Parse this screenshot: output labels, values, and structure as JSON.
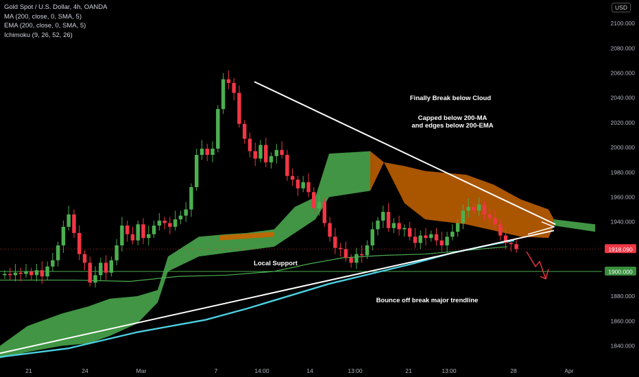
{
  "legend": {
    "title": "Gold Spot / U.S. Dollar, 4h, OANDA",
    "ma": "MA (200, close, 0, SMA, 5)",
    "ema": "EMA (200, close, 0, SMA, 5)",
    "ichimoku": "Ichimoku (9, 26, 52, 26)"
  },
  "currency_button": "USD",
  "colors": {
    "background": "#000000",
    "up": "#26a69a",
    "up_candle": "#4caf50",
    "down_candle": "#f23645",
    "cloud_bull": "#4caf50",
    "cloud_bear": "#c86400",
    "ma_line": "#4caf50",
    "ema_line": "#4dd0e1",
    "trendline": "#ffffff",
    "price_tag": "#f23645",
    "support_tag": "#388e3c",
    "forecast_arrow": "#f23645"
  },
  "chart_data": {
    "type": "candlestick",
    "instrument": "Gold Spot / U.S. Dollar",
    "timeframe": "4h",
    "ylim": [
      1830,
      2110
    ],
    "y_ticks": [
      "1840.000",
      "1860.000",
      "1880.000",
      "1900.000",
      "1920.000",
      "1940.000",
      "1960.000",
      "1980.000",
      "2000.000",
      "2020.000",
      "2040.000",
      "2060.000",
      "2080.000",
      "2100.000"
    ],
    "x_ticks": [
      "21",
      "24",
      "Mar",
      "7",
      "14:00",
      "14",
      "13:00",
      "21",
      "13:00",
      "28",
      "Apr"
    ],
    "last_price": "1918.090",
    "support_level": 1900,
    "support_label": "1900.000",
    "annotations": [
      "Finally Break below Cloud",
      "Capped below 200-MA",
      "and edges below 200-EMA",
      "Local Support",
      "Bounce off break major trendline"
    ],
    "trendlines": [
      {
        "name": "descending resistance",
        "from": [
          "7 Mar 14:00",
          2053
        ],
        "to": [
          "Mar 30",
          1938
        ]
      },
      {
        "name": "ascending support",
        "from": [
          "Feb 21",
          1834
        ],
        "to": [
          "Mar 30",
          1933
        ]
      }
    ],
    "closes": [
      1898,
      1897,
      1899,
      1898,
      1900,
      1897,
      1901,
      1896,
      1904,
      1909,
      1921,
      1936,
      1946,
      1931,
      1914,
      1907,
      1891,
      1897,
      1907,
      1899,
      1909,
      1921,
      1937,
      1930,
      1925,
      1938,
      1927,
      1930,
      1937,
      1941,
      1939,
      1936,
      1942,
      1945,
      1950,
      1968,
      1994,
      1999,
      1994,
      1999,
      2031,
      2055,
      2052,
      2044,
      2019,
      2007,
      1997,
      1991,
      2002,
      1988,
      1993,
      1998,
      1994,
      1977,
      1974,
      1967,
      1972,
      1964,
      1951,
      1956,
      1939,
      1928,
      1919,
      1918,
      1911,
      1907,
      1914,
      1913,
      1921,
      1934,
      1941,
      1948,
      1935,
      1939,
      1934,
      1935,
      1928,
      1923,
      1929,
      1927,
      1930,
      1925,
      1921,
      1928,
      1932,
      1939,
      1949,
      1952,
      1949,
      1954,
      1946,
      1943,
      1938,
      1929,
      1923,
      1922,
      1918
    ],
    "sma_200": [
      [
        0,
        1893
      ],
      [
        110,
        1893
      ],
      [
        190,
        1892
      ],
      [
        260,
        1896
      ],
      [
        330,
        1897
      ],
      [
        400,
        1900
      ],
      [
        450,
        1906
      ],
      [
        500,
        1911
      ],
      [
        560,
        1913
      ],
      [
        620,
        1914
      ],
      [
        680,
        1917
      ],
      [
        740,
        1920
      ]
    ],
    "ema_200": [
      [
        0,
        1831
      ],
      [
        100,
        1838
      ],
      [
        200,
        1851
      ],
      [
        300,
        1861
      ],
      [
        360,
        1870
      ],
      [
        420,
        1880
      ],
      [
        480,
        1890
      ],
      [
        540,
        1898
      ],
      [
        600,
        1906
      ],
      [
        660,
        1915
      ],
      [
        720,
        1922
      ],
      [
        750,
        1925
      ]
    ],
    "cloud": [
      {
        "x": [
          0,
          40,
          90,
          130,
          160,
          200,
          230,
          245,
          290,
          330,
          360,
          400,
          430,
          460,
          480,
          540,
          560,
          590,
          620,
          680,
          720,
          760,
          800,
          808,
          868
        ],
        "a": [
          1840,
          1856,
          1866,
          1872,
          1878,
          1880,
          1885,
          1912,
          1928,
          1930,
          1931,
          1934,
          1952,
          1960,
          1995,
          1997,
          1988,
          1985,
          1981,
          1978,
          1970,
          1958,
          1950,
          1942,
          1938
        ],
        "b": [
          1830,
          1835,
          1840,
          1842,
          1848,
          1858,
          1875,
          1900,
          1912,
          1915,
          1917,
          1920,
          1931,
          1942,
          1960,
          1965,
          1988,
          1955,
          1942,
          1938,
          1933,
          1928,
          1927,
          1937,
          1932
        ]
      }
    ]
  }
}
